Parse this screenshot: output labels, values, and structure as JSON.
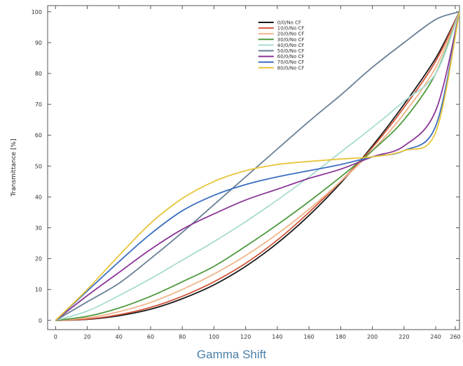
{
  "caption": "Gamma Shift",
  "chart_data": {
    "type": "line",
    "title": "",
    "xlabel": "",
    "ylabel": "Transmittance [%]",
    "xlim": [
      -5,
      255
    ],
    "ylim": [
      -3,
      102
    ],
    "xticks": [
      0,
      20,
      40,
      60,
      80,
      100,
      120,
      140,
      160,
      180,
      200,
      220,
      240,
      260
    ],
    "yticks": [
      0,
      10,
      20,
      30,
      40,
      50,
      60,
      70,
      80,
      90,
      100
    ],
    "grid": false,
    "legend_position": "top-center",
    "series": [
      {
        "name": "0/0/No CF",
        "color": "#1a1a1a",
        "x": [
          0,
          20,
          40,
          60,
          80,
          100,
          120,
          140,
          160,
          180,
          200,
          220,
          240,
          255
        ],
        "y": [
          0,
          0.3,
          1.5,
          3.6,
          7,
          11.5,
          17.5,
          25,
          34,
          44.5,
          56.5,
          70,
          85,
          100
        ]
      },
      {
        "name": "10/0/No CF",
        "color": "#d2553a",
        "x": [
          0,
          20,
          40,
          60,
          80,
          100,
          120,
          140,
          160,
          180,
          200,
          220,
          240,
          255
        ],
        "y": [
          0,
          0.4,
          1.8,
          4.2,
          7.8,
          12.5,
          18.5,
          26,
          35,
          45,
          56,
          69,
          84,
          100
        ]
      },
      {
        "name": "20/0/No CF",
        "color": "#f0b58a",
        "x": [
          0,
          20,
          40,
          60,
          80,
          100,
          120,
          140,
          160,
          180,
          200,
          220,
          240,
          255
        ],
        "y": [
          0,
          0.8,
          2.8,
          5.8,
          10,
          15,
          21,
          28,
          36,
          45,
          55,
          67,
          82,
          100
        ]
      },
      {
        "name": "30/0/No CF",
        "color": "#4e9a3f",
        "x": [
          0,
          20,
          40,
          60,
          80,
          100,
          120,
          140,
          160,
          180,
          200,
          220,
          240,
          255
        ],
        "y": [
          0,
          1.3,
          4,
          7.8,
          12.5,
          17.5,
          24,
          31,
          38.5,
          46.5,
          55,
          65,
          80,
          100
        ]
      },
      {
        "name": "40/0/No CF",
        "color": "#a8dcd0",
        "x": [
          0,
          20,
          40,
          60,
          80,
          100,
          120,
          140,
          160,
          180,
          200,
          220,
          240,
          255
        ],
        "y": [
          0,
          3,
          8,
          13.5,
          19.5,
          25.5,
          32,
          39,
          46.5,
          54.5,
          62.5,
          71,
          80,
          100
        ]
      },
      {
        "name": "50/0/No CF",
        "color": "#6a7f96",
        "x": [
          0,
          20,
          40,
          60,
          80,
          100,
          120,
          140,
          160,
          180,
          200,
          220,
          240,
          255
        ],
        "y": [
          0,
          6,
          12,
          20,
          28.5,
          37.5,
          46.5,
          55.5,
          64.5,
          73,
          82,
          90,
          97.5,
          100
        ]
      },
      {
        "name": "60/0/No CF",
        "color": "#8a3596",
        "x": [
          0,
          20,
          40,
          60,
          80,
          100,
          120,
          140,
          160,
          180,
          200,
          220,
          240,
          255
        ],
        "y": [
          0,
          8,
          15.5,
          23,
          29.5,
          34.5,
          39,
          42.5,
          46,
          49,
          53,
          56.5,
          68,
          100
        ]
      },
      {
        "name": "70/0/No CF",
        "color": "#3b6ec0",
        "x": [
          0,
          20,
          40,
          60,
          80,
          100,
          120,
          140,
          160,
          180,
          200,
          220,
          240,
          255
        ],
        "y": [
          0,
          9.5,
          19,
          28,
          35.5,
          40.5,
          44,
          46.5,
          48.5,
          50.5,
          53,
          55,
          63,
          100
        ]
      },
      {
        "name": "80/0/No CF",
        "color": "#e8c53a",
        "x": [
          0,
          20,
          40,
          60,
          80,
          100,
          120,
          140,
          160,
          180,
          200,
          220,
          240,
          255
        ],
        "y": [
          0,
          10,
          21,
          31.5,
          39.5,
          45,
          48.5,
          50.5,
          51.5,
          52.3,
          53,
          55,
          61,
          100
        ]
      }
    ]
  }
}
